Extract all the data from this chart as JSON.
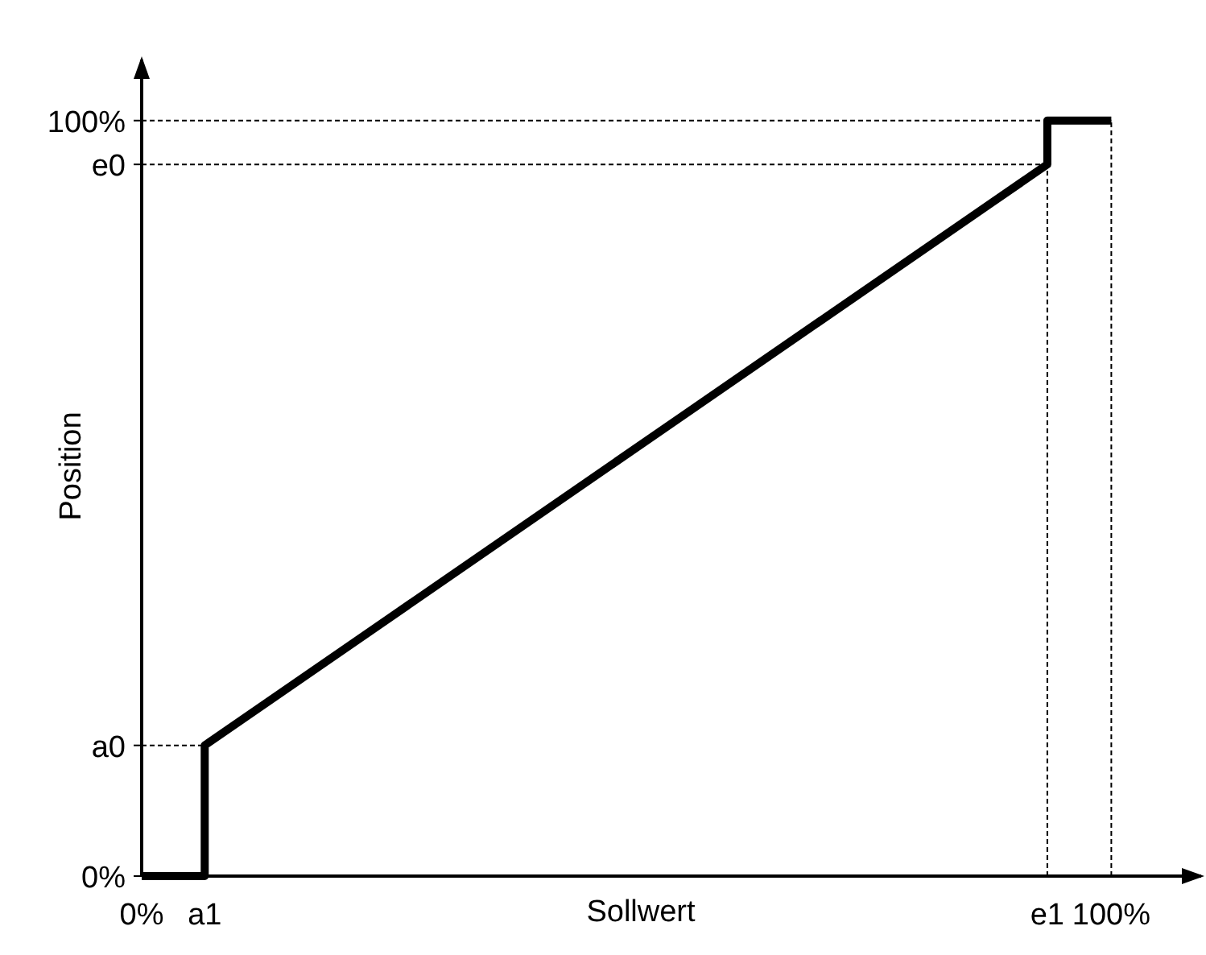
{
  "chart_data": {
    "type": "line",
    "xlabel": "Sollwert",
    "ylabel": "Position",
    "xlim": [
      0,
      109.6
    ],
    "ylim": [
      0,
      108.5
    ],
    "xticks": [
      {
        "value": 0,
        "label": "0%"
      },
      {
        "value": 6.5,
        "label": "a1"
      },
      {
        "value": 93.4,
        "label": "e1"
      },
      {
        "value": 100,
        "label": "100%"
      }
    ],
    "yticks": [
      {
        "value": 0,
        "label": "0%"
      },
      {
        "value": 17.3,
        "label": "a0"
      },
      {
        "value": 94.2,
        "label": "e0"
      },
      {
        "value": 100,
        "label": "100%"
      }
    ],
    "series": [
      {
        "color": "#000000",
        "line_style": "dotted",
        "x": [
          0,
          6.5
        ],
        "values": [
          17.3,
          17.3
        ]
      },
      {
        "color": "#000000",
        "line_style": "dotted",
        "x": [
          0,
          93.4
        ],
        "values": [
          94.2,
          94.2
        ]
      },
      {
        "color": "#000000",
        "line_style": "dotted",
        "x": [
          0,
          100
        ],
        "values": [
          100,
          100
        ]
      },
      {
        "color": "#000000",
        "line_style": "dotted",
        "x": [
          93.4,
          93.4
        ],
        "values": [
          0,
          94.2
        ]
      },
      {
        "color": "#000000",
        "line_style": "dotted",
        "x": [
          100,
          100
        ],
        "values": [
          0,
          100
        ]
      },
      {
        "color": "#000000",
        "x": [
          0,
          6.5,
          6.5,
          93.4,
          93.4,
          100
        ],
        "values": [
          0,
          0,
          17.3,
          94.2,
          100,
          100
        ]
      }
    ],
    "grid": false,
    "marker": "none",
    "line_style": "solid"
  }
}
